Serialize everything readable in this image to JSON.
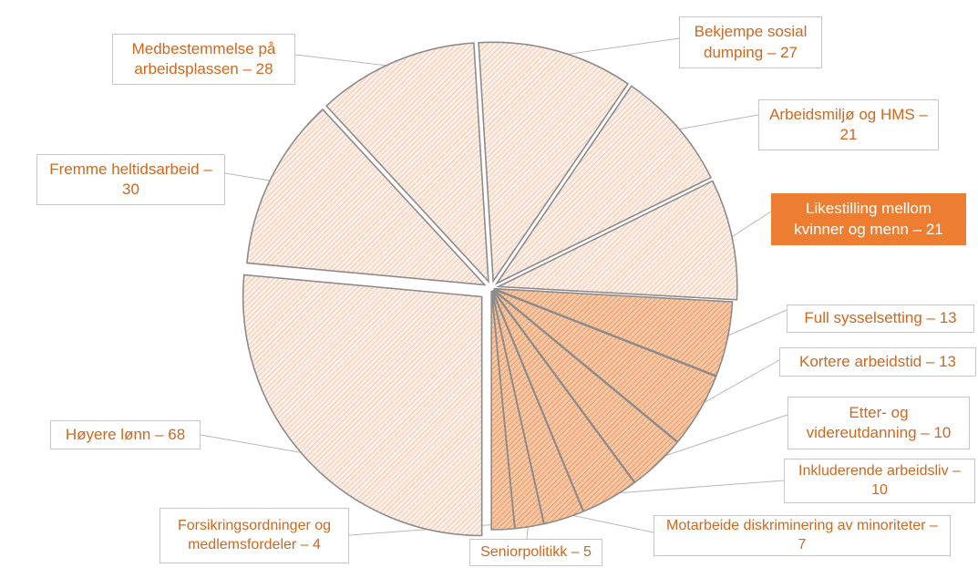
{
  "chart_data": {
    "type": "pie",
    "title": "",
    "slices": [
      {
        "label": "Høyere lønn – 68",
        "value": 68
      },
      {
        "label": "Fremme heltidsarbeid – 30",
        "value": 30
      },
      {
        "label": "Medbestemmelse på arbeidsplassen – 28",
        "value": 28
      },
      {
        "label": "Bekjempe sosial dumping – 27",
        "value": 27
      },
      {
        "label": "Arbeidsmiljø og HMS – 21",
        "value": 21
      },
      {
        "label": "Likestilling mellom kvinner og menn – 21",
        "value": 21,
        "highlighted": true
      },
      {
        "label": "Full sysselsetting – 13",
        "value": 13
      },
      {
        "label": "Kortere arbeidstid – 13",
        "value": 13
      },
      {
        "label": "Etter- og videreutdanning – 10",
        "value": 10
      },
      {
        "label": "Inkluderende arbeidsliv – 10",
        "value": 10
      },
      {
        "label": "Motarbeide diskriminering av minoriteter – 7",
        "value": 7
      },
      {
        "label": "Seniorpolitikk – 5",
        "value": 5
      },
      {
        "label": "Forsikringsordninger og medlemsfordeler – 4",
        "value": 4
      }
    ],
    "colors": {
      "light_slice_fill": "#fdeee6",
      "light_slice_hatch": "#f0b496",
      "dark_slice_fill": "#f6c7a4",
      "dark_slice_hatch": "#e8894f",
      "slice_border": "#8c8c8c",
      "label_text": "#d0671f",
      "highlight_fill": "#ed7d31",
      "highlight_text": "#ffffff",
      "label_border": "#c6c6c6",
      "leader_line": "#b8b8b8"
    }
  }
}
